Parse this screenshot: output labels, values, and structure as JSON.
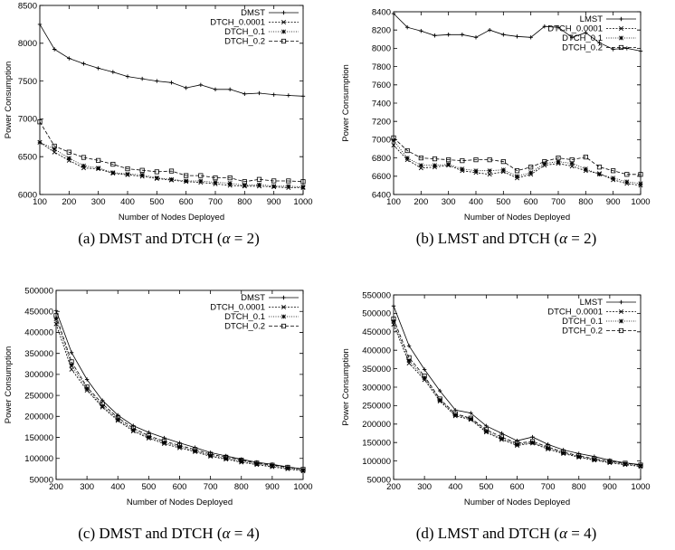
{
  "chart_data": [
    {
      "id": "a",
      "type": "line",
      "caption_prefix": "(a) DMST and DTCH (",
      "caption_symbol": "α",
      "caption_suffix": " = 2)",
      "xlabel": "Number of Nodes Deployed",
      "ylabel": "Power Consumption",
      "xlim": [
        100,
        1000
      ],
      "ylim": [
        6000,
        8500
      ],
      "xticks": [
        100,
        200,
        300,
        400,
        500,
        600,
        700,
        800,
        900,
        1000
      ],
      "yticks": [
        6000,
        6500,
        7000,
        7500,
        8000,
        8500
      ],
      "legend_position": "top-right",
      "grid": false,
      "x": [
        100,
        150,
        200,
        250,
        300,
        350,
        400,
        450,
        500,
        550,
        600,
        650,
        700,
        750,
        800,
        850,
        900,
        950,
        1000
      ],
      "series": [
        {
          "name": "DMST",
          "marker": "plus",
          "dash": "",
          "values": [
            8250,
            7920,
            7800,
            7730,
            7670,
            7620,
            7560,
            7530,
            7500,
            7480,
            7410,
            7450,
            7390,
            7390,
            7330,
            7340,
            7320,
            7310,
            7300
          ]
        },
        {
          "name": "DTCH_0.0001",
          "marker": "cross",
          "dash": "2,1.5",
          "values": [
            6690,
            6560,
            6450,
            6350,
            6340,
            6280,
            6260,
            6240,
            6210,
            6190,
            6170,
            6160,
            6140,
            6120,
            6110,
            6110,
            6100,
            6090,
            6090
          ]
        },
        {
          "name": "DTCH_0.1",
          "marker": "star",
          "dash": "1,1.5",
          "values": [
            6690,
            6600,
            6480,
            6380,
            6350,
            6290,
            6270,
            6260,
            6220,
            6200,
            6180,
            6180,
            6160,
            6150,
            6120,
            6130,
            6110,
            6110,
            6100
          ]
        },
        {
          "name": "DTCH_0.2",
          "marker": "square",
          "dash": "4,2",
          "values": [
            6960,
            6640,
            6560,
            6490,
            6450,
            6400,
            6340,
            6320,
            6300,
            6310,
            6250,
            6250,
            6220,
            6220,
            6170,
            6200,
            6180,
            6180,
            6170
          ]
        }
      ]
    },
    {
      "id": "b",
      "type": "line",
      "caption_prefix": "(b) LMST and DTCH (",
      "caption_symbol": "α",
      "caption_suffix": " = 2)",
      "xlabel": "Number of Nodes Deployed",
      "ylabel": "Power Consumption",
      "xlim": [
        100,
        1000
      ],
      "ylim": [
        6400,
        8400
      ],
      "xticks": [
        100,
        200,
        300,
        400,
        500,
        600,
        700,
        800,
        900,
        1000
      ],
      "yticks": [
        6400,
        6600,
        6800,
        7000,
        7200,
        7400,
        7600,
        7800,
        8000,
        8200,
        8400
      ],
      "legend_position": "top-right",
      "grid": false,
      "x": [
        100,
        150,
        200,
        250,
        300,
        350,
        400,
        450,
        500,
        550,
        600,
        650,
        700,
        750,
        800,
        850,
        900,
        950,
        1000
      ],
      "series": [
        {
          "name": "LMST",
          "marker": "plus",
          "dash": "",
          "values": [
            8380,
            8230,
            8190,
            8140,
            8150,
            8150,
            8120,
            8200,
            8150,
            8130,
            8120,
            8240,
            8230,
            8120,
            8170,
            8060,
            7990,
            8000,
            7970
          ]
        },
        {
          "name": "DTCH_0.0001",
          "marker": "cross",
          "dash": "2,1.5",
          "values": [
            6940,
            6780,
            6690,
            6700,
            6720,
            6660,
            6640,
            6620,
            6650,
            6580,
            6620,
            6720,
            6740,
            6710,
            6660,
            6630,
            6560,
            6520,
            6500
          ]
        },
        {
          "name": "DTCH_0.1",
          "marker": "star",
          "dash": "1,1.5",
          "values": [
            6990,
            6800,
            6720,
            6720,
            6730,
            6680,
            6660,
            6660,
            6670,
            6600,
            6640,
            6740,
            6760,
            6740,
            6680,
            6620,
            6580,
            6540,
            6520
          ]
        },
        {
          "name": "DTCH_0.2",
          "marker": "square",
          "dash": "4,2",
          "values": [
            7020,
            6880,
            6800,
            6790,
            6780,
            6770,
            6780,
            6780,
            6760,
            6660,
            6700,
            6760,
            6800,
            6780,
            6810,
            6700,
            6660,
            6620,
            6620
          ]
        }
      ]
    },
    {
      "id": "c",
      "type": "line",
      "caption_prefix": "(c) DMST and DTCH (",
      "caption_symbol": "α",
      "caption_suffix": " = 4)",
      "xlabel": "Number of Nodes Deployed",
      "ylabel": "Power Consumption",
      "xlim": [
        200,
        1000
      ],
      "ylim": [
        50000,
        500000
      ],
      "xticks": [
        200,
        300,
        400,
        500,
        600,
        700,
        800,
        900,
        1000
      ],
      "yticks": [
        50000,
        100000,
        150000,
        200000,
        250000,
        300000,
        350000,
        400000,
        450000,
        500000
      ],
      "legend_position": "top-right",
      "grid": false,
      "x": [
        200,
        250,
        300,
        350,
        400,
        450,
        500,
        550,
        600,
        650,
        700,
        750,
        800,
        850,
        900,
        950,
        1000
      ],
      "series": [
        {
          "name": "DMST",
          "marker": "plus",
          "dash": "",
          "values": [
            452000,
            352000,
            288000,
            238000,
            203000,
            178000,
            162000,
            149000,
            137000,
            126000,
            114000,
            106000,
            98000,
            91000,
            86000,
            80000,
            75000
          ]
        },
        {
          "name": "DTCH_0.0001",
          "marker": "cross",
          "dash": "2,1.5",
          "values": [
            420000,
            312000,
            262000,
            222000,
            190000,
            165000,
            148000,
            135000,
            125000,
            116000,
            105000,
            98000,
            91000,
            85000,
            80000,
            75000,
            70000
          ]
        },
        {
          "name": "DTCH_0.1",
          "marker": "star",
          "dash": "1,1.5",
          "values": [
            432000,
            322000,
            266000,
            225000,
            193000,
            168000,
            151000,
            138000,
            128000,
            118000,
            107000,
            100000,
            93000,
            87000,
            82000,
            77000,
            72000
          ]
        },
        {
          "name": "DTCH_0.2",
          "marker": "square",
          "dash": "4,2",
          "values": [
            440000,
            330000,
            270000,
            230000,
            197000,
            172000,
            154000,
            141000,
            131000,
            121000,
            110000,
            103000,
            96000,
            89000,
            84000,
            79000,
            74000
          ]
        }
      ]
    },
    {
      "id": "d",
      "type": "line",
      "caption_prefix": "(d) LMST and DTCH (",
      "caption_symbol": "α",
      "caption_suffix": " = 4)",
      "xlabel": "Number of Nodes Deployed",
      "ylabel": "Power Consumption",
      "xlim": [
        200,
        1000
      ],
      "ylim": [
        50000,
        550000
      ],
      "xticks": [
        200,
        300,
        400,
        500,
        600,
        700,
        800,
        900,
        1000
      ],
      "yticks": [
        50000,
        100000,
        150000,
        200000,
        250000,
        300000,
        350000,
        400000,
        450000,
        500000,
        550000
      ],
      "legend_position": "top-right",
      "grid": false,
      "x": [
        200,
        250,
        300,
        350,
        400,
        450,
        500,
        550,
        600,
        650,
        700,
        750,
        800,
        850,
        900,
        950,
        1000
      ],
      "series": [
        {
          "name": "LMST",
          "marker": "plus",
          "dash": "",
          "values": [
            520000,
            412000,
            348000,
            290000,
            238000,
            230000,
            195000,
            175000,
            155000,
            165000,
            145000,
            130000,
            120000,
            112000,
            102000,
            95000,
            90000
          ]
        },
        {
          "name": "DTCH_0.0001",
          "marker": "cross",
          "dash": "2,1.5",
          "values": [
            470000,
            365000,
            320000,
            262000,
            222000,
            212000,
            178000,
            158000,
            142000,
            148000,
            132000,
            120000,
            110000,
            102000,
            95000,
            90000,
            85000
          ]
        },
        {
          "name": "DTCH_0.1",
          "marker": "star",
          "dash": "1,1.5",
          "values": [
            478000,
            372000,
            325000,
            265000,
            225000,
            214000,
            181000,
            161000,
            145000,
            150000,
            135000,
            122000,
            112000,
            104000,
            97000,
            92000,
            87000
          ]
        },
        {
          "name": "DTCH_0.2",
          "marker": "square",
          "dash": "4,2",
          "values": [
            485000,
            380000,
            330000,
            268000,
            228000,
            216000,
            185000,
            165000,
            148000,
            153000,
            138000,
            124000,
            114000,
            106000,
            99000,
            94000,
            89000
          ]
        }
      ]
    }
  ]
}
